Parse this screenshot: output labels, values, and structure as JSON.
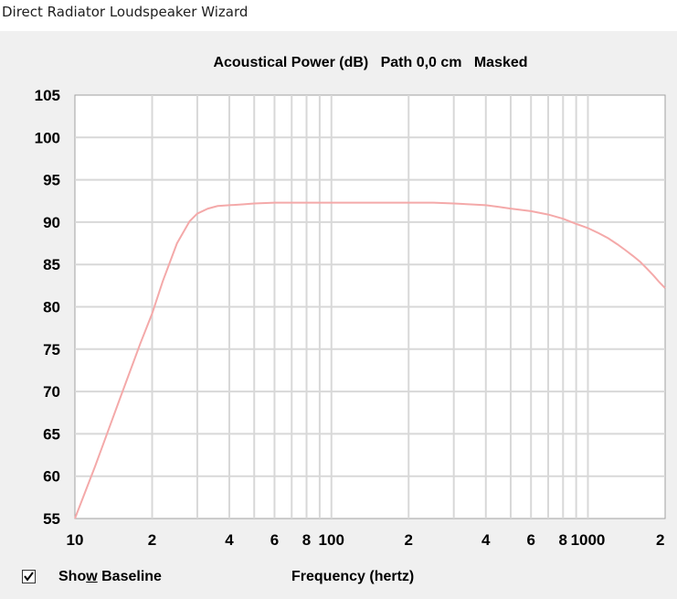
{
  "window": {
    "title": "Direct Radiator Loudspeaker Wizard"
  },
  "controls": {
    "show_baseline": {
      "label_pre": "Sho",
      "label_access": "w",
      "label_post": " Baseline",
      "checked": true
    }
  },
  "chart_data": {
    "type": "line",
    "title": "Acoustical Power (dB)   Path 0,0 cm   Masked",
    "xlabel": "Frequency (hertz)",
    "ylabel": "",
    "xscale": "log",
    "xlim": [
      10,
      2000
    ],
    "ylim": [
      55,
      105
    ],
    "yticks": [
      105,
      100,
      95,
      90,
      85,
      80,
      75,
      70,
      65,
      60,
      55
    ],
    "xticks": [
      {
        "value": 10,
        "label": "10"
      },
      {
        "value": 20,
        "label": "2"
      },
      {
        "value": 40,
        "label": "4"
      },
      {
        "value": 60,
        "label": "6"
      },
      {
        "value": 80,
        "label": "8"
      },
      {
        "value": 100,
        "label": "100"
      },
      {
        "value": 200,
        "label": "2"
      },
      {
        "value": 400,
        "label": "4"
      },
      {
        "value": 600,
        "label": "6"
      },
      {
        "value": 800,
        "label": "8"
      },
      {
        "value": 1000,
        "label": "1000"
      },
      {
        "value": 2000,
        "label": "2"
      }
    ],
    "grid": true,
    "line_color": "#f4a9a9",
    "series": [
      {
        "x": [
          10,
          12,
          15,
          18,
          20,
          22,
          25,
          28,
          30,
          33,
          36,
          40,
          45,
          50,
          60,
          70,
          80,
          100,
          150,
          200,
          250,
          300,
          350,
          400,
          450,
          500,
          600,
          700,
          800,
          900,
          1000,
          1100,
          1200,
          1300,
          1400,
          1500,
          1600,
          1700,
          1800,
          1900,
          2000
        ],
        "values": [
          55,
          61.2,
          69.2,
          75.7,
          79.2,
          83.0,
          87.5,
          90.1,
          91.0,
          91.6,
          91.9,
          92.0,
          92.1,
          92.2,
          92.3,
          92.3,
          92.3,
          92.3,
          92.3,
          92.3,
          92.3,
          92.2,
          92.1,
          92.0,
          91.8,
          91.6,
          91.3,
          90.9,
          90.4,
          89.8,
          89.3,
          88.7,
          88.1,
          87.4,
          86.7,
          86.0,
          85.3,
          84.5,
          83.7,
          82.9,
          82.2
        ]
      }
    ]
  }
}
